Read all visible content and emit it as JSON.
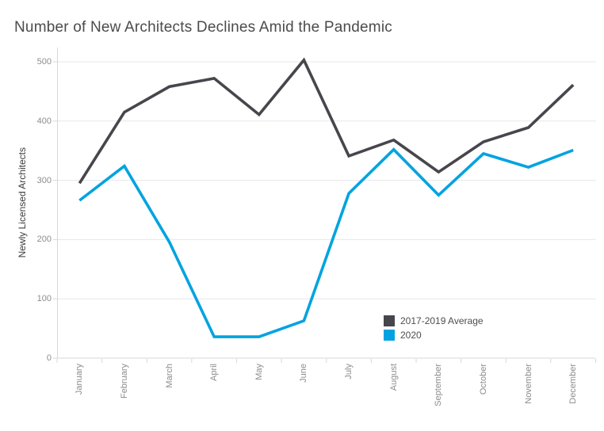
{
  "title": "Number of New Architects Declines Amid the Pandemic",
  "chart_data": {
    "type": "line",
    "title": "Number of New Architects Declines Amid the Pandemic",
    "xlabel": "",
    "ylabel": "Newly Licensed Architects",
    "categories": [
      "January",
      "February",
      "March",
      "April",
      "May",
      "June",
      "July",
      "August",
      "September",
      "October",
      "November",
      "December"
    ],
    "series": [
      {
        "name": "2017-2019 Average",
        "color": "#46464c",
        "values": [
          295,
          415,
          458,
          472,
          411,
          503,
          341,
          368,
          314,
          365,
          389,
          461
        ]
      },
      {
        "name": "2020",
        "color": "#00a3e0",
        "values": [
          266,
          324,
          196,
          36,
          36,
          63,
          278,
          352,
          275,
          345,
          322,
          351
        ]
      }
    ],
    "ylim": [
      0,
      500
    ],
    "y_ticks": [
      0,
      100,
      200,
      300,
      400,
      500
    ],
    "grid": true,
    "legend_position": "inside-right-lower"
  },
  "colors": {
    "title_text": "#4b4b4b",
    "axis_title_text": "#3c3c3c",
    "tick_text": "#8c8c8c",
    "gridline": "#e7e7e7",
    "axis_line": "#d7d7d7",
    "background": "#ffffff",
    "legend_text": "#4e4e4e"
  }
}
